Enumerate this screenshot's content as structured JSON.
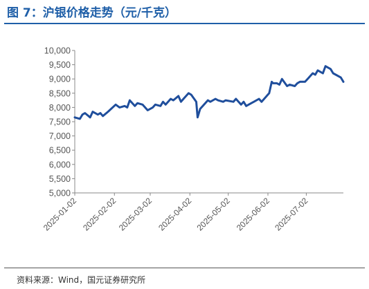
{
  "title": "图 7：沪银价格走势（元/千克）",
  "source": "资料来源：Wind，国元证券研究所",
  "colors": {
    "title": "#1f5fa8",
    "line": "#1f4e9c",
    "axis": "#888888",
    "text": "#555555"
  },
  "chart_data": {
    "type": "line",
    "title": "图 7：沪银价格走势（元/千克）",
    "xlabel": "",
    "ylabel": "",
    "ylim": [
      5000,
      10000
    ],
    "yticks": [
      "10,000",
      "9,500",
      "9,000",
      "8,500",
      "8,000",
      "7,500",
      "7,000",
      "6,500",
      "6,000",
      "5,500",
      "5,000"
    ],
    "xticks": [
      "2025-01-02",
      "2025-02-02",
      "2025-03-02",
      "2025-04-02",
      "2025-05-02",
      "2025-06-02",
      "2025-07-02"
    ],
    "grid": false,
    "legend": "none",
    "x_range": [
      "2025-01-02",
      "2025-07-31"
    ],
    "series": [
      {
        "x": [
          "2025-01-02",
          "2025-01-06",
          "2025-01-08",
          "2025-01-10",
          "2025-01-14",
          "2025-01-16",
          "2025-01-20",
          "2025-01-22",
          "2025-01-24",
          "2025-01-28",
          "2025-02-03",
          "2025-02-06",
          "2025-02-10",
          "2025-02-12",
          "2025-02-14",
          "2025-02-18",
          "2025-02-20",
          "2025-02-24",
          "2025-02-26",
          "2025-02-28",
          "2025-03-04",
          "2025-03-06",
          "2025-03-10",
          "2025-03-12",
          "2025-03-14",
          "2025-03-18",
          "2025-03-20",
          "2025-03-24",
          "2025-03-26",
          "2025-03-28",
          "2025-04-01",
          "2025-04-03",
          "2025-04-07",
          "2025-04-08",
          "2025-04-10",
          "2025-04-14",
          "2025-04-16",
          "2025-04-18",
          "2025-04-22",
          "2025-04-24",
          "2025-04-28",
          "2025-04-30",
          "2025-05-06",
          "2025-05-08",
          "2025-05-12",
          "2025-05-14",
          "2025-05-16",
          "2025-05-20",
          "2025-05-22",
          "2025-05-26",
          "2025-05-28",
          "2025-06-03",
          "2025-06-05",
          "2025-06-06",
          "2025-06-09",
          "2025-06-11",
          "2025-06-13",
          "2025-06-17",
          "2025-06-19",
          "2025-06-23",
          "2025-06-25",
          "2025-06-27",
          "2025-07-01",
          "2025-07-03",
          "2025-07-07",
          "2025-07-09",
          "2025-07-11",
          "2025-07-15",
          "2025-07-17",
          "2025-07-21",
          "2025-07-23",
          "2025-07-25",
          "2025-07-29",
          "2025-07-31"
        ],
        "y": [
          7650,
          7600,
          7750,
          7800,
          7650,
          7850,
          7750,
          7800,
          7700,
          7850,
          8100,
          8000,
          8050,
          8000,
          8250,
          8050,
          8150,
          8100,
          8000,
          7900,
          8000,
          8100,
          8050,
          8200,
          8100,
          8300,
          8250,
          8400,
          8200,
          8300,
          8500,
          8450,
          8200,
          7650,
          7950,
          8150,
          8250,
          8200,
          8300,
          8250,
          8200,
          8250,
          8200,
          8300,
          8100,
          8200,
          8050,
          8150,
          8200,
          8300,
          8200,
          8500,
          8900,
          8850,
          8850,
          8800,
          9000,
          8750,
          8800,
          8750,
          8850,
          8900,
          8900,
          9000,
          9200,
          9150,
          9300,
          9200,
          9450,
          9350,
          9200,
          9150,
          9050,
          8900
        ]
      }
    ]
  }
}
